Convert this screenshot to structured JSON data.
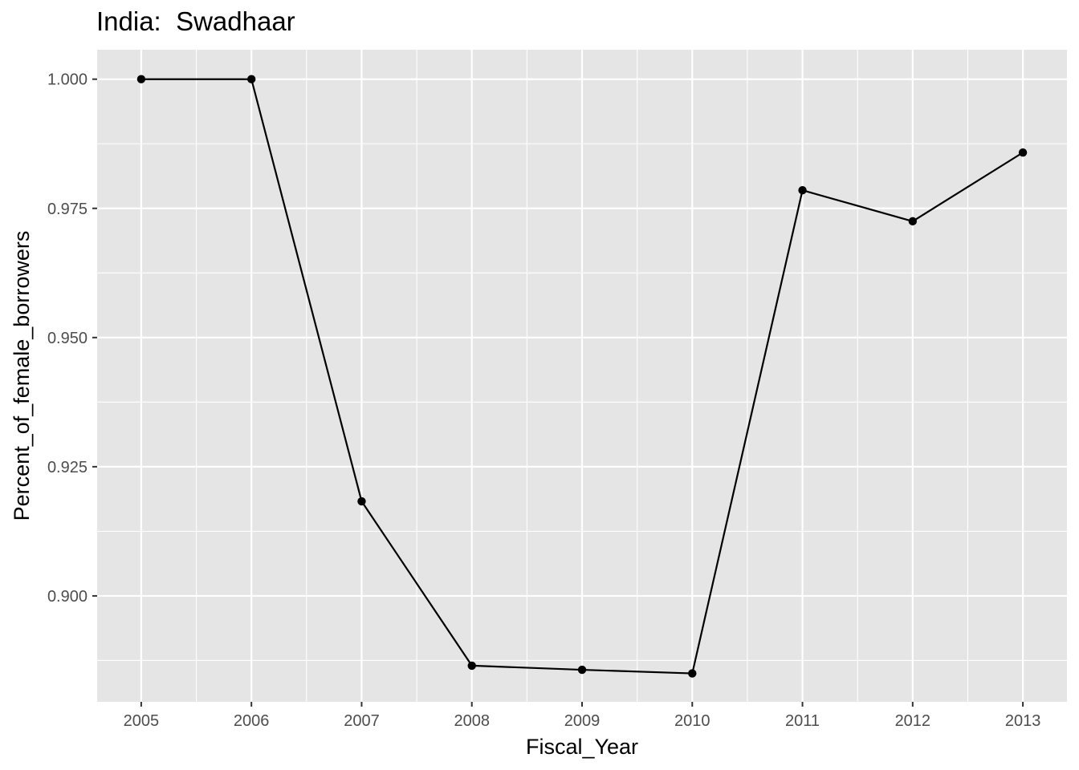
{
  "chart_data": {
    "type": "line",
    "title": "India:  Swadhaar",
    "xlabel": "Fiscal_Year",
    "ylabel": "Percent_of_female_borrowers",
    "x": [
      2005,
      2006,
      2007,
      2008,
      2009,
      2010,
      2011,
      2012,
      2013
    ],
    "series": [
      {
        "values": [
          1.0,
          1.0,
          0.9183,
          0.8865,
          0.8857,
          0.885,
          0.9785,
          0.9725,
          0.9858
        ]
      }
    ],
    "xlim": [
      2004.6,
      2013.4
    ],
    "ylim": [
      0.8795,
      1.0057
    ],
    "x_ticks": [
      "2005",
      "2006",
      "2007",
      "2008",
      "2009",
      "2010",
      "2011",
      "2012",
      "2013"
    ],
    "y_ticks": [
      0.9,
      0.925,
      0.95,
      0.975,
      1.0
    ],
    "y_tick_labels": [
      "0.900",
      "0.925",
      "0.950",
      "0.975",
      "1.000"
    ],
    "grid": true,
    "colors": {
      "panel_background": "#E5E5E5",
      "grid": "#FFFFFF",
      "line": "#000000",
      "tick_text": "#4D4D4D"
    }
  }
}
